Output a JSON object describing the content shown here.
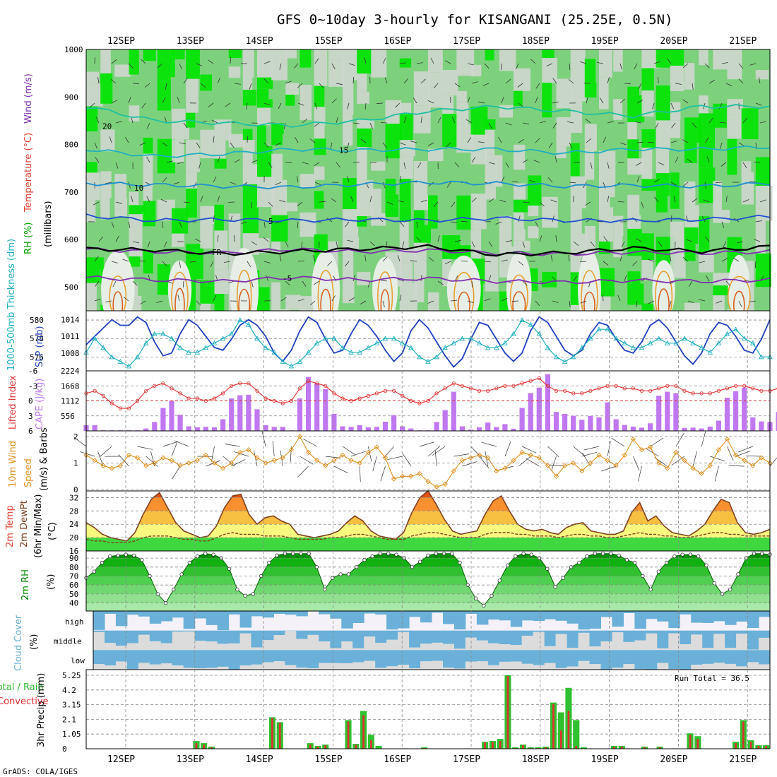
{
  "title": "GFS 0~10day 3-hourly for KISANGANI (25.25E, 0.5N)",
  "credit": "GrADS: COLA/IGES",
  "dates": [
    "12SEP",
    "13SEP",
    "14SEP",
    "15SEP",
    "16SEP",
    "17SEP",
    "18SEP",
    "19SEP",
    "20SEP",
    "21SEP"
  ],
  "colors": {
    "rh_light": "#cfd6cf",
    "rh_mid": "#7dd17d",
    "rh_high": "#00e400",
    "slp": "#1f3fbf",
    "thickness": "#20b0c0",
    "lifted": "#e03030",
    "cape": "#c078f0",
    "wind10": "#e09020",
    "temp_fill": "#f08030",
    "rh2m": "#008800",
    "cloud": "#6ab0d8",
    "precip_total": "#30c030",
    "precip_conv": "#e03030"
  },
  "chart_data": [
    {
      "type": "heatmap",
      "name": "upper-air",
      "y_axis_title": [
        "RH (%)",
        "Temperature (°C)",
        "Wind (m/s)"
      ],
      "y_axis_unit": "(millibars)",
      "y_ticks": [
        "500",
        "600",
        "700",
        "800",
        "900",
        "1000"
      ],
      "ylim": [
        450,
        1000
      ],
      "isotherms": [
        {
          "label": "-5",
          "p": [
            520,
            515,
            512,
            520,
            515,
            518,
            512,
            510,
            514,
            512,
            515
          ]
        },
        {
          "label": "FR",
          "p": [
            580,
            578,
            570,
            575,
            580,
            585,
            568,
            572,
            582,
            575,
            585
          ]
        },
        {
          "label": "5",
          "p": [
            650,
            640,
            642,
            640,
            642,
            640,
            645,
            640,
            640,
            642,
            648
          ]
        },
        {
          "label": "10",
          "p": [
            718,
            715,
            712,
            710,
            716,
            720,
            718,
            712,
            714,
            712,
            718
          ]
        },
        {
          "label": "15",
          "p": [
            790,
            775,
            780,
            790,
            788,
            790,
            790,
            782,
            790,
            790,
            795
          ]
        },
        {
          "label": "20",
          "p": [
            880,
            850,
            845,
            840,
            850,
            870,
            880,
            870,
            860,
            880,
            880
          ]
        }
      ],
      "isotherm_labels": [
        "-5",
        "FR",
        "5",
        "10",
        "15",
        "20"
      ]
    },
    {
      "type": "line",
      "name": "thickness-slp",
      "left_axis": "1000-500mb Thickness (dm)",
      "left_ticks": [
        "580",
        "578",
        "576"
      ],
      "left_ylim": [
        574.5,
        581
      ],
      "right_axis": "SLP (mb)",
      "right_ticks": [
        "1014",
        "1011",
        "1008"
      ],
      "right_ylim": [
        1004.8,
        1015.6
      ],
      "series": [
        {
          "name": "SLP",
          "axis": "right",
          "values": [
            1009.5,
            1011,
            1012.5,
            1014,
            1013,
            1013,
            1014.5,
            1013.5,
            1010,
            1007.5,
            1008,
            1011.5,
            1014,
            1013,
            1011,
            1009,
            1008.5,
            1010.5,
            1013,
            1014,
            1013,
            1011,
            1008,
            1006.5,
            1008.5,
            1012,
            1014.5,
            1013.5,
            1010.5,
            1008,
            1008.5,
            1011.5,
            1014,
            1013,
            1011,
            1008.5,
            1006.5,
            1008,
            1012,
            1014,
            1012.5,
            1010,
            1007.5,
            1005.5,
            1007,
            1010.5,
            1013.5,
            1013,
            1010.5,
            1008,
            1006.5,
            1008,
            1012,
            1014.5,
            1013.5,
            1011,
            1008.5,
            1007.5,
            1008.5,
            1011.5,
            1013.5,
            1013,
            1010.5,
            1008.5,
            1008,
            1010,
            1013,
            1014,
            1012.5,
            1010,
            1007.5,
            1006,
            1008,
            1011.5,
            1013.5,
            1013,
            1011,
            1008.5,
            1008,
            1010.5,
            1014
          ]
        },
        {
          "name": "Thickness",
          "axis": "left",
          "values": [
            576.5,
            578,
            577,
            576,
            575.5,
            575,
            576,
            577.5,
            578.5,
            578.5,
            578,
            577,
            576.5,
            576.5,
            577,
            577.5,
            578,
            578.5,
            580,
            579.5,
            578,
            577,
            576.5,
            575.5,
            575,
            575.5,
            576.5,
            577.5,
            578,
            578,
            577,
            576.5,
            576.5,
            577,
            577.5,
            578,
            578,
            577.5,
            577,
            576,
            575.5,
            576,
            577,
            577.5,
            578,
            578,
            577.5,
            577,
            577,
            577.5,
            578.5,
            580,
            579.5,
            578.5,
            577,
            576,
            575.5,
            576,
            577,
            578,
            579,
            579,
            578,
            577.5,
            577,
            577,
            577.5,
            578,
            577.5,
            577.5,
            578,
            577.5,
            577,
            576.5,
            577.5,
            578.5,
            579,
            578,
            577.5,
            576,
            576
          ]
        }
      ]
    },
    {
      "type": "bar",
      "name": "cape-lifted",
      "left_axis": "Lifted Index",
      "left_ticks": [
        "-6",
        "-3",
        "0",
        "3",
        "6"
      ],
      "left_ylim": [
        6,
        -6
      ],
      "right_axis": "CAPE (J/kg)",
      "right_ticks": [
        "2224",
        "1668",
        "1112",
        "556"
      ],
      "right_ylim": [
        0,
        2224
      ],
      "cape": [
        210,
        210,
        20,
        20,
        20,
        20,
        20,
        90,
        330,
        850,
        1120,
        600,
        170,
        130,
        150,
        130,
        430,
        1200,
        1320,
        1340,
        800,
        210,
        150,
        150,
        20,
        1200,
        2000,
        1750,
        1550,
        630,
        170,
        150,
        210,
        130,
        150,
        340,
        580,
        170,
        90,
        20,
        20,
        330,
        770,
        1450,
        170,
        50,
        130,
        310,
        140,
        250,
        80,
        850,
        1400,
        1600,
        2100,
        700,
        630,
        560,
        410,
        550,
        500,
        1060,
        430,
        220,
        160,
        120,
        280,
        1300,
        1450,
        1400,
        110,
        120,
        90,
        160,
        380,
        1230,
        1470,
        1600,
        500,
        350,
        330,
        700
      ],
      "lifted_index": [
        -1.5,
        -2,
        -1,
        0.5,
        1.5,
        1.5,
        0,
        -2,
        -3,
        -3.5,
        -2.5,
        -1.5,
        -0.5,
        -0.5,
        0,
        -0.5,
        -1.5,
        -3,
        -3.5,
        -3.5,
        -2,
        -0.5,
        0,
        0.5,
        0,
        -2.5,
        -4,
        -3.5,
        -3,
        -1.5,
        -0.5,
        0,
        -0.5,
        -1,
        -1.5,
        -2,
        -2,
        -1,
        0,
        0.5,
        0,
        -1.5,
        -2.5,
        -3.5,
        -3,
        -2.5,
        -2,
        -2,
        -2.5,
        -3,
        -3,
        -3.5,
        -4,
        -4.5,
        -3,
        -2,
        -2,
        -1.5,
        -1.5,
        -2,
        -2.5,
        -3,
        -3,
        -2.5,
        -2.5,
        -2,
        -2,
        -2.5,
        -3,
        -3,
        -2,
        -1.5,
        -1.5,
        -1.5,
        -2,
        -2.5,
        -3,
        -3,
        -2.5,
        -2,
        -2,
        -2.5,
        -2
      ]
    },
    {
      "type": "line",
      "name": "wind10m",
      "y_axis_title": "10m Wind Speed (m/s) & Barbs",
      "y_ticks": [
        "2",
        "1",
        "0"
      ],
      "ylim": [
        0,
        2
      ],
      "values": [
        1.3,
        1.1,
        0.9,
        0.8,
        0.9,
        1.3,
        1.2,
        0.9,
        1,
        1.2,
        1.1,
        0.9,
        1,
        1.1,
        1.3,
        1,
        0.8,
        1,
        1.4,
        1.5,
        1.2,
        1,
        1.1,
        1.2,
        1.5,
        2,
        1.4,
        1.1,
        0.9,
        1.1,
        1.3,
        1.1,
        1,
        1.4,
        1.6,
        1.2,
        0.4,
        0.5,
        0.5,
        0.6,
        0.3,
        0.1,
        0.2,
        0.7,
        1.1,
        1.2,
        1.3,
        1.2,
        0.7,
        0.8,
        1.1,
        1.4,
        1.3,
        1.2,
        0.9,
        0.5,
        0.9,
        1,
        0.7,
        1,
        1.3,
        1.1,
        0.9,
        1.3,
        1.9,
        1.5,
        1.6,
        1,
        0.8,
        1.4,
        1.1,
        0.8,
        0.6,
        0.9,
        1.5,
        1.9,
        1.3,
        1.1,
        0.9,
        1.2,
        1
      ]
    },
    {
      "type": "area",
      "name": "temp2m",
      "y_axis_title": "2m Temp 2m DewPt (6hr Min/Max) (°C)",
      "y_ticks": [
        "32",
        "28",
        "24",
        "20",
        "16"
      ],
      "ylim": [
        16,
        34
      ],
      "temperature": [
        24.5,
        23,
        21,
        20,
        19.5,
        19,
        21.5,
        27,
        31.5,
        33.5,
        29,
        24.5,
        22,
        21,
        20,
        20.5,
        23.5,
        29,
        32.5,
        33,
        27,
        24,
        26,
        26.5,
        25,
        24,
        21,
        20.5,
        20,
        20.5,
        21,
        22,
        24.5,
        26.5,
        25,
        22,
        20.5,
        20,
        19.5,
        21.5,
        27.5,
        32,
        34,
        30,
        25.5,
        22,
        21,
        21.5,
        22,
        27,
        31,
        32.5,
        28,
        24,
        22.5,
        22,
        22.5,
        21.5,
        21,
        23,
        24,
        24.5,
        22,
        21.5,
        21,
        21,
        22,
        27.5,
        30.5,
        25,
        26.5,
        23.5,
        21.5,
        21,
        20.5,
        22,
        24,
        28,
        31.5,
        30.5,
        24.5,
        21.5,
        21,
        21.5,
        22.5
      ],
      "dewpoint": [
        19.5,
        19,
        19,
        18.5,
        18.5,
        18.5,
        19,
        20,
        20.5,
        20.5,
        20.5,
        20,
        19.5,
        19.5,
        19,
        19,
        20,
        21,
        21.5,
        21,
        21,
        21,
        20.5,
        20.5,
        20.5,
        20,
        19.5,
        19.5,
        19.5,
        19.5,
        20,
        20,
        20.5,
        21,
        21,
        20.5,
        20,
        19.5,
        19.5,
        19.5,
        20.5,
        21,
        21.5,
        21.5,
        21,
        20.5,
        20,
        20,
        20,
        21,
        21.5,
        21.5,
        21.5,
        21,
        21,
        20.5,
        20.5,
        20.5,
        20,
        20.5,
        21,
        21,
        20.5,
        20.5,
        20,
        20,
        20.5,
        21,
        21.5,
        21,
        21,
        20.5,
        20.5,
        20,
        20,
        20.5,
        21,
        21.5,
        21.5,
        21,
        21,
        20.5,
        20.5,
        20.5,
        20.5
      ]
    },
    {
      "type": "area",
      "name": "rh2m",
      "y_axis_title": "2m RH (%)",
      "y_ticks": [
        "90",
        "80",
        "70",
        "60",
        "50",
        "40"
      ],
      "ylim": [
        31,
        98
      ],
      "values": [
        68,
        75,
        85,
        92,
        93,
        94,
        93,
        88,
        70,
        50,
        40,
        55,
        72,
        85,
        92,
        95,
        94,
        90,
        78,
        55,
        48,
        50,
        70,
        85,
        93,
        95,
        95,
        95,
        95,
        80,
        55,
        68,
        72,
        72,
        80,
        88,
        92,
        95,
        95,
        94,
        90,
        80,
        86,
        93,
        95,
        95,
        95,
        85,
        60,
        45,
        37,
        48,
        65,
        82,
        92,
        95,
        94,
        90,
        78,
        58,
        68,
        80,
        85,
        92,
        95,
        95,
        95,
        93,
        88,
        85,
        70,
        55,
        75,
        85,
        92,
        94,
        94,
        92,
        82,
        62,
        50,
        55,
        72,
        90,
        95,
        95,
        94
      ]
    },
    {
      "type": "heatmap",
      "name": "cloud-cover",
      "y_axis_title": "Cloud Cover (%)",
      "levels": [
        "high",
        "middle",
        "low"
      ]
    },
    {
      "type": "bar",
      "name": "precip",
      "y_axis_title": "3hr Precip (mm)",
      "legend": [
        "Total / Rain",
        "Convective"
      ],
      "run_total_label": "Run Total = 36.5",
      "y_ticks": [
        "5.25",
        "4.2",
        "3.15",
        "2.1",
        "1.05",
        "0"
      ],
      "ylim": [
        0,
        5.25
      ],
      "total": [
        0,
        0,
        0,
        0,
        0,
        0,
        0,
        0,
        0,
        0,
        0,
        0,
        0,
        0,
        0.55,
        0.4,
        0.15,
        0,
        0,
        0,
        0,
        0,
        0,
        0,
        2.25,
        1.9,
        0,
        0,
        0,
        0.4,
        0.2,
        0.3,
        0,
        0,
        2.05,
        0.35,
        2.7,
        1.0,
        0.2,
        0,
        0,
        0,
        0,
        0,
        0.1,
        0,
        0,
        0,
        0,
        0,
        0,
        0,
        0.5,
        0.55,
        0.7,
        5.25,
        0.1,
        0.3,
        0.1,
        0.1,
        0.15,
        3.3,
        2.6,
        4.35,
        2.05,
        0.1,
        0,
        0,
        0,
        0.2,
        0.2,
        0,
        0,
        0.15,
        0,
        0.15,
        0,
        0,
        0,
        1.1,
        0.9,
        0,
        0,
        0,
        0,
        0.5,
        2.05,
        0.6,
        0.25,
        0.25
      ],
      "convective": [
        0,
        0,
        0,
        0,
        0,
        0,
        0,
        0,
        0,
        0,
        0,
        0,
        0,
        0,
        0.4,
        0.3,
        0.1,
        0,
        0,
        0,
        0,
        0,
        0,
        0,
        2.2,
        1.85,
        0,
        0,
        0,
        0.3,
        0.15,
        0.25,
        0,
        0,
        1.95,
        0.3,
        2.4,
        0.6,
        0,
        0,
        0,
        0,
        0,
        0,
        0.05,
        0,
        0,
        0,
        0,
        0,
        0,
        0,
        0.45,
        0.5,
        0.55,
        5.2,
        0.05,
        0.25,
        0.05,
        0.05,
        0.1,
        3.2,
        1.3,
        2.7,
        0.2,
        0,
        0,
        0,
        0,
        0.15,
        0.15,
        0,
        0,
        0.1,
        0,
        0.1,
        0,
        0,
        0,
        1.0,
        0.7,
        0,
        0,
        0,
        0,
        0.4,
        1.95,
        0.5,
        0.2,
        0.2
      ]
    }
  ]
}
